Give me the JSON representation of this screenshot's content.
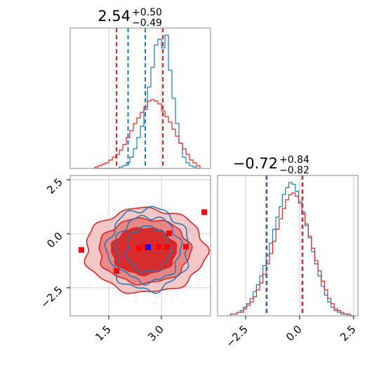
{
  "chart_data": [
    {
      "type": "histogram",
      "panel": "marginal-x",
      "title": {
        "value": "2.54",
        "upper": "+0.50",
        "lower": "−0.49"
      },
      "xlim": [
        0.4,
        4.4
      ],
      "grid": true,
      "bins": {
        "start": 1.1,
        "width": 0.1,
        "count": 30
      },
      "series": [
        {
          "name": "",
          "color": "#1f77b4",
          "counts": [
            0,
            0,
            0,
            0,
            0,
            0,
            0,
            1,
            2,
            4,
            8,
            14,
            22,
            30,
            42,
            58,
            72,
            88,
            92,
            86,
            95,
            70,
            50,
            32,
            18,
            8,
            4,
            2,
            1,
            0
          ]
        },
        {
          "name": "",
          "color": "#d62728",
          "counts": [
            1,
            2,
            3,
            4,
            6,
            8,
            10,
            13,
            17,
            22,
            27,
            32,
            36,
            40,
            44,
            48,
            49,
            48,
            46,
            41,
            37,
            33,
            28,
            23,
            18,
            14,
            10,
            6,
            4,
            2
          ]
        }
      ],
      "quantiles_blue": [
        2.05,
        2.54,
        3.04
      ],
      "quantiles_red": [
        1.72,
        3.04
      ]
    },
    {
      "type": "histogram",
      "panel": "marginal-y",
      "title": {
        "value": "−0.72",
        "upper": "+0.84",
        "lower": "−0.82"
      },
      "xlim": [
        -3.8,
        2.7
      ],
      "xticks": [
        "−2.5",
        "0.0",
        "2.5"
      ],
      "grid": true,
      "bins": {
        "start": -3.2,
        "width": 0.15,
        "count": 38
      },
      "series": [
        {
          "name": "",
          "color": "#1f77b4",
          "counts": [
            1,
            1,
            2,
            3,
            5,
            7,
            10,
            14,
            18,
            23,
            29,
            35,
            42,
            50,
            57,
            63,
            70,
            74,
            77,
            76,
            72,
            66,
            60,
            52,
            45,
            37,
            30,
            23,
            17,
            12,
            8,
            5,
            3,
            2,
            1,
            1,
            0,
            0
          ]
        },
        {
          "name": "",
          "color": "#d62728",
          "counts": [
            1,
            1,
            2,
            2,
            4,
            6,
            8,
            11,
            15,
            19,
            24,
            30,
            36,
            43,
            50,
            56,
            62,
            67,
            70,
            71,
            69,
            65,
            59,
            53,
            46,
            39,
            32,
            26,
            20,
            15,
            10,
            7,
            4,
            3,
            2,
            1,
            1,
            0
          ]
        }
      ],
      "quantiles_blue": [
        -1.54,
        0.12
      ],
      "quantiles_red": [
        -1.54,
        0.12
      ]
    },
    {
      "type": "contour",
      "panel": "joint",
      "xlim": [
        0.4,
        4.4
      ],
      "ylim": [
        -3.8,
        2.7
      ],
      "xticks": [
        "1.5",
        "3.0"
      ],
      "yticks": [
        "2.5",
        "0.0",
        "−2.5"
      ],
      "grid": true,
      "red_levels": [
        {
          "cx": 2.55,
          "cy": -0.78,
          "rx": 1.72,
          "ry": 1.95,
          "fill": "#f4c2c2",
          "opacity": 0.9
        },
        {
          "cx": 2.52,
          "cy": -0.8,
          "rx": 1.3,
          "ry": 1.5,
          "fill": "#e88080",
          "opacity": 0.9
        },
        {
          "cx": 2.5,
          "cy": -0.8,
          "rx": 0.92,
          "ry": 1.08,
          "fill": "#d62728",
          "opacity": 0.95
        }
      ],
      "blue_levels": [
        {
          "cx": 2.62,
          "cy": -0.72,
          "rx": 0.62,
          "ry": 1.05
        },
        {
          "cx": 2.62,
          "cy": -0.72,
          "rx": 0.92,
          "ry": 1.52
        },
        {
          "cx": 2.62,
          "cy": -0.72,
          "rx": 1.15,
          "ry": 1.9
        }
      ],
      "red_points": [
        [
          0.72,
          -0.75
        ],
        [
          1.72,
          -1.72
        ],
        [
          2.35,
          -0.68
        ],
        [
          2.56,
          -0.6
        ],
        [
          2.92,
          -0.6
        ],
        [
          3.15,
          -0.62
        ],
        [
          3.22,
          0.02
        ],
        [
          4.22,
          1.0
        ],
        [
          3.7,
          -0.6
        ]
      ],
      "blue_point": [
        2.62,
        -0.62
      ]
    }
  ]
}
